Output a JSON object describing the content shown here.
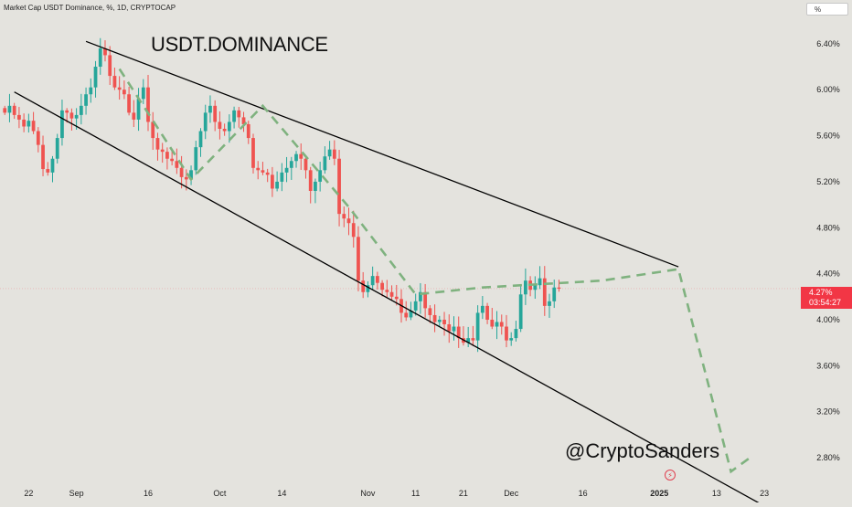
{
  "header": {
    "symbol_info": "Market Cap USDT Dominance, %, 1D, CRYPTOCAP",
    "scale_button": "%"
  },
  "annotations": {
    "title": "USDT.DOMINANCE",
    "watermark": "@CryptoSanders"
  },
  "price_label": {
    "value": "4.27%",
    "countdown": "03:54:27"
  },
  "colors": {
    "up": "#26a69a",
    "down": "#ef5350",
    "projection": "#7fb27f",
    "trendline": "#000000",
    "price_tag": "#f23645"
  },
  "icons": [
    "tradingview-logo-icon"
  ],
  "chart_data": {
    "type": "candlestick",
    "ylim": [
      2.57,
      6.78
    ],
    "y_ticks": [
      {
        "value": 6.4,
        "label": "6.40%"
      },
      {
        "value": 6.0,
        "label": "6.00%"
      },
      {
        "value": 5.6,
        "label": "5.60%"
      },
      {
        "value": 5.2,
        "label": "5.20%"
      },
      {
        "value": 4.8,
        "label": "4.80%"
      },
      {
        "value": 4.4,
        "label": "4.40%"
      },
      {
        "value": 4.0,
        "label": "4.00%"
      },
      {
        "value": 3.6,
        "label": "3.60%"
      },
      {
        "value": 3.2,
        "label": "3.20%"
      },
      {
        "value": 2.8,
        "label": "2.80%"
      }
    ],
    "x_ticks": [
      {
        "date": "2024-08-22",
        "label": "22",
        "bold": false
      },
      {
        "date": "2024-09-01",
        "label": "Sep",
        "bold": false
      },
      {
        "date": "2024-09-16",
        "label": "16",
        "bold": false
      },
      {
        "date": "2024-10-01",
        "label": "Oct",
        "bold": false
      },
      {
        "date": "2024-10-14",
        "label": "14",
        "bold": false
      },
      {
        "date": "2024-11-01",
        "label": "Nov",
        "bold": false
      },
      {
        "date": "2024-11-11",
        "label": "11",
        "bold": false
      },
      {
        "date": "2024-11-21",
        "label": "21",
        "bold": false
      },
      {
        "date": "2024-12-01",
        "label": "Dec",
        "bold": false
      },
      {
        "date": "2024-12-16",
        "label": "16",
        "bold": false
      },
      {
        "date": "2025-01-01",
        "label": "2025",
        "bold": true
      },
      {
        "date": "2025-01-13",
        "label": "13",
        "bold": false
      },
      {
        "date": "2025-01-23",
        "label": "23",
        "bold": false
      }
    ],
    "x_range": [
      "2024-08-16",
      "2025-01-31"
    ],
    "last_price": 4.27,
    "candles_start": "2024-08-17",
    "closes": [
      5.8,
      5.86,
      5.78,
      5.74,
      5.68,
      5.73,
      5.64,
      5.52,
      5.31,
      5.28,
      5.4,
      5.58,
      5.82,
      5.8,
      5.75,
      5.78,
      5.86,
      5.96,
      6.02,
      6.2,
      6.36,
      6.3,
      6.12,
      6.02,
      6.0,
      5.96,
      5.8,
      5.74,
      5.92,
      6.02,
      5.72,
      5.58,
      5.48,
      5.46,
      5.4,
      5.38,
      5.32,
      5.24,
      5.22,
      5.3,
      5.5,
      5.64,
      5.8,
      5.86,
      5.72,
      5.66,
      5.64,
      5.72,
      5.82,
      5.76,
      5.7,
      5.58,
      5.32,
      5.3,
      5.28,
      5.26,
      5.14,
      5.2,
      5.28,
      5.32,
      5.38,
      5.44,
      5.4,
      5.3,
      5.12,
      5.2,
      5.3,
      5.42,
      5.48,
      5.4,
      4.92,
      4.88,
      4.84,
      4.72,
      4.34,
      4.24,
      4.3,
      4.38,
      4.32,
      4.26,
      4.24,
      4.2,
      4.18,
      4.06,
      4.02,
      4.08,
      4.16,
      4.24,
      4.1,
      4.04,
      3.98,
      4.0,
      3.96,
      3.9,
      3.94,
      3.84,
      3.8,
      3.84,
      3.82,
      4.06,
      4.12,
      4.0,
      3.94,
      3.98,
      3.94,
      3.82,
      3.84,
      3.92,
      4.22,
      4.34,
      4.26,
      4.3,
      4.36,
      4.12,
      4.16,
      4.28,
      4.27
    ],
    "trendlines": [
      {
        "name": "upper-resistance",
        "points": [
          [
            "2024-09-03",
            6.42
          ],
          [
            "2025-01-05",
            4.46
          ]
        ]
      },
      {
        "name": "lower-support",
        "points": [
          [
            "2024-08-19",
            5.98
          ],
          [
            "2025-01-23",
            2.38
          ]
        ]
      }
    ],
    "projection_path": [
      [
        "2024-09-10",
        6.18
      ],
      [
        "2024-09-25",
        5.22
      ],
      [
        "2024-10-10",
        5.86
      ],
      [
        "2024-10-28",
        4.98
      ],
      [
        "2024-11-11",
        4.22
      ],
      [
        "2024-11-25",
        4.28
      ],
      [
        "2024-12-20",
        4.34
      ],
      [
        "2025-01-05",
        4.44
      ],
      [
        "2025-01-16",
        2.68
      ],
      [
        "2025-01-20",
        2.8
      ]
    ]
  }
}
